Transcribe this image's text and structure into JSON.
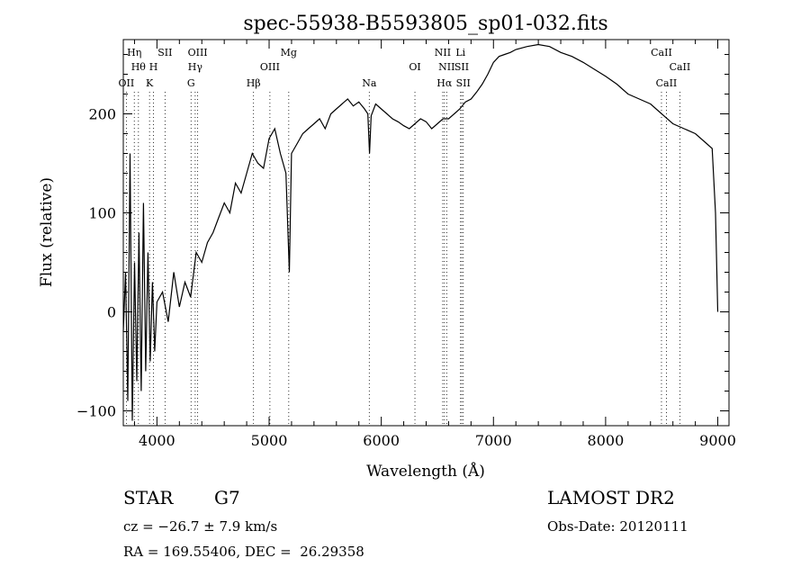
{
  "chart_data": {
    "type": "line",
    "title": "spec-55938-B5593805_sp01-032.fits",
    "xlabel": "Wavelength (Å)",
    "ylabel": "Flux (relative)",
    "xlim": [
      3700,
      9100
    ],
    "ylim": [
      -115,
      275
    ],
    "x_ticks": [
      4000,
      5000,
      6000,
      7000,
      8000,
      9000
    ],
    "y_ticks": [
      -100,
      0,
      100,
      200
    ],
    "series": [
      {
        "x": [
          3700,
          3720,
          3740,
          3760,
          3780,
          3800,
          3820,
          3840,
          3860,
          3880,
          3900,
          3920,
          3940,
          3960,
          3980,
          4000,
          4050,
          4100,
          4150,
          4200,
          4250,
          4300,
          4350,
          4400,
          4450,
          4500,
          4550,
          4600,
          4650,
          4700,
          4750,
          4800,
          4850,
          4900,
          4950,
          5000,
          5050,
          5100,
          5150,
          5180,
          5200,
          5250,
          5300,
          5350,
          5400,
          5450,
          5500,
          5550,
          5600,
          5650,
          5700,
          5750,
          5800,
          5850,
          5880,
          5895,
          5910,
          5950,
          6000,
          6050,
          6100,
          6150,
          6200,
          6250,
          6300,
          6350,
          6400,
          6450,
          6500,
          6550,
          6600,
          6650,
          6700,
          6750,
          6800,
          6850,
          6900,
          6950,
          7000,
          7050,
          7100,
          7150,
          7200,
          7300,
          7400,
          7500,
          7600,
          7700,
          7800,
          7900,
          8000,
          8100,
          8200,
          8300,
          8400,
          8500,
          8600,
          8700,
          8800,
          8900,
          8950,
          8980,
          9000
        ],
        "y": [
          -20,
          40,
          -90,
          160,
          -110,
          50,
          -70,
          80,
          -80,
          110,
          -60,
          60,
          -50,
          30,
          -40,
          10,
          20,
          -10,
          40,
          5,
          30,
          15,
          60,
          50,
          70,
          80,
          95,
          110,
          100,
          130,
          120,
          140,
          160,
          150,
          145,
          175,
          185,
          160,
          140,
          40,
          160,
          170,
          180,
          185,
          190,
          195,
          185,
          200,
          205,
          210,
          215,
          208,
          212,
          205,
          200,
          160,
          198,
          210,
          205,
          200,
          195,
          192,
          188,
          185,
          190,
          195,
          192,
          185,
          190,
          195,
          195,
          200,
          205,
          212,
          215,
          222,
          230,
          240,
          252,
          258,
          260,
          262,
          265,
          268,
          270,
          268,
          262,
          258,
          252,
          245,
          238,
          230,
          220,
          215,
          210,
          200,
          190,
          185,
          180,
          170,
          165,
          100,
          0
        ]
      }
    ],
    "spectral_lines": [
      {
        "wavelength": 3727,
        "label": "OII",
        "row": 3
      },
      {
        "wavelength": 3798,
        "label": "Hη",
        "row": 1
      },
      {
        "wavelength": 3835,
        "label": "Hθ",
        "row": 2
      },
      {
        "wavelength": 3934,
        "label": "K",
        "row": 3
      },
      {
        "wavelength": 3969,
        "label": "H",
        "row": 2
      },
      {
        "wavelength": 4072,
        "label": "SII",
        "row": 1
      },
      {
        "wavelength": 4304,
        "label": "G",
        "row": 3
      },
      {
        "wavelength": 4341,
        "label": "Hγ",
        "row": 2
      },
      {
        "wavelength": 4363,
        "label": "OIII",
        "row": 1
      },
      {
        "wavelength": 4861,
        "label": "Hβ",
        "row": 3
      },
      {
        "wavelength": 5007,
        "label": "OIII",
        "row": 2
      },
      {
        "wavelength": 5175,
        "label": "Mg",
        "row": 1
      },
      {
        "wavelength": 5893,
        "label": "Na",
        "row": 3
      },
      {
        "wavelength": 6300,
        "label": "OI",
        "row": 2
      },
      {
        "wavelength": 6548,
        "label": "NII",
        "row": 1
      },
      {
        "wavelength": 6563,
        "label": "Hα",
        "row": 3
      },
      {
        "wavelength": 6583,
        "label": "NII",
        "row": 2
      },
      {
        "wavelength": 6707,
        "label": "Li",
        "row": 1
      },
      {
        "wavelength": 6717,
        "label": "SII",
        "row": 2
      },
      {
        "wavelength": 6731,
        "label": "SII",
        "row": 3
      },
      {
        "wavelength": 8498,
        "label": "CaII",
        "row": 1
      },
      {
        "wavelength": 8542,
        "label": "CaII",
        "row": 3
      },
      {
        "wavelength": 8662,
        "label": "CaII",
        "row": 2
      }
    ]
  },
  "info": {
    "class": "STAR",
    "subclass": "G7",
    "survey": "LAMOST DR2",
    "cz": "cz = −26.7 ± 7.9 km/s",
    "obs_date": "Obs-Date: 20120111",
    "radec": "RA = 169.55406, DEC =  26.29358"
  }
}
